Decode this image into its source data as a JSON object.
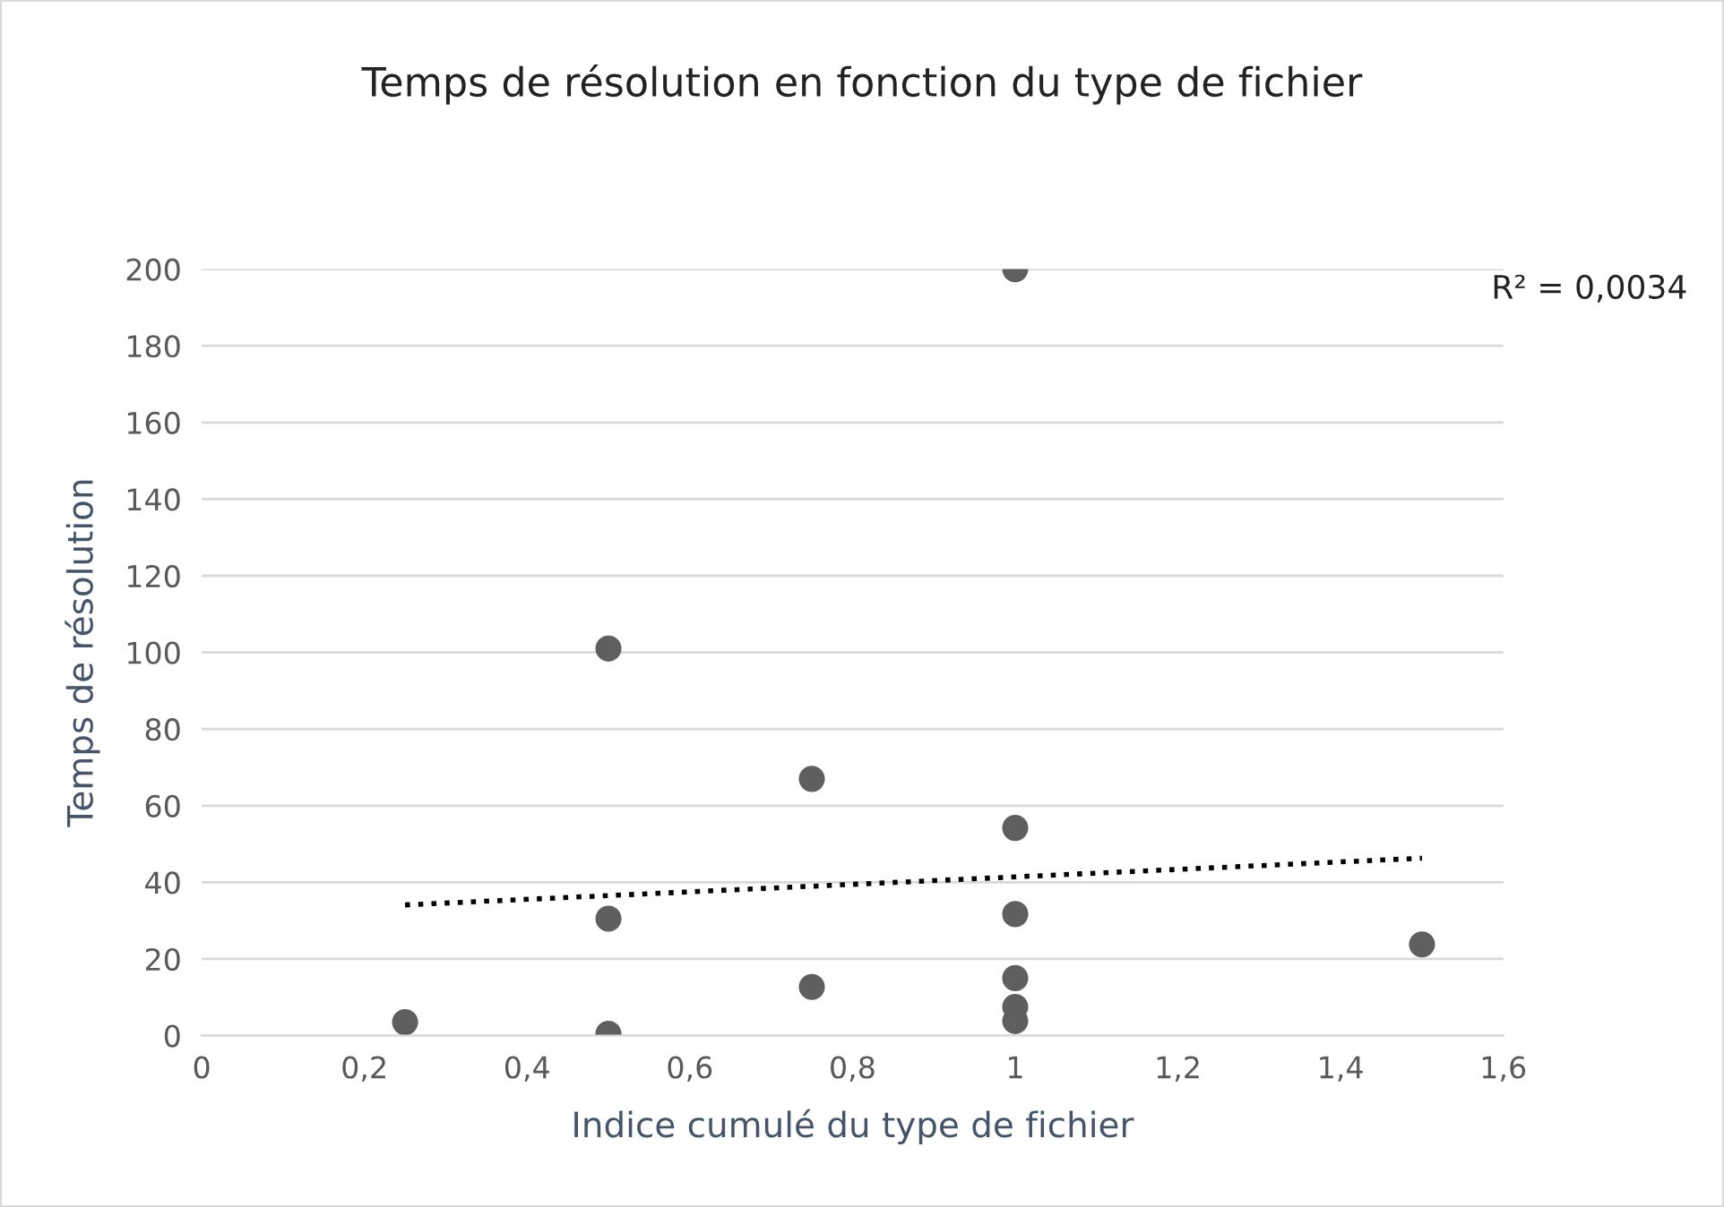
{
  "chart_data": {
    "type": "scatter",
    "title": "Temps de résolution en fonction du type de fichier",
    "xlabel": "Indice cumulé du type de fichier",
    "ylabel": "Temps de résolution",
    "annotations": [
      "R² = 0,0034"
    ],
    "series": [
      {
        "color": "#5f5f5f",
        "marker": "circle",
        "x": [
          0.25,
          0.5,
          0.5,
          0.5,
          0.75,
          0.75,
          1,
          1,
          1,
          1,
          1,
          1,
          1.5
        ],
        "values": [
          3.5,
          101,
          30.5,
          0.5,
          67,
          12.7,
          200,
          54.2,
          31.7,
          15,
          7.5,
          3.8,
          23.8
        ]
      },
      {
        "type": "line",
        "color": "#000000",
        "line_style": "dotted",
        "marker": "none",
        "x": [
          0.25,
          1.5
        ],
        "values": [
          34.1,
          46.3
        ]
      }
    ],
    "xlim": [
      0,
      1.6
    ],
    "ylim": [
      0,
      200
    ],
    "xticks": [
      0,
      {
        "value": 0.2,
        "label": "0,2"
      },
      {
        "value": 0.4,
        "label": "0,4"
      },
      {
        "value": 0.6,
        "label": "0,6"
      },
      {
        "value": 0.8,
        "label": "0,8"
      },
      1,
      {
        "value": 1.2,
        "label": "1,2"
      },
      {
        "value": 1.4,
        "label": "1,4"
      },
      {
        "value": 1.6,
        "label": "1,6"
      }
    ],
    "yticks": [
      0,
      20,
      40,
      60,
      80,
      100,
      120,
      140,
      160,
      180,
      200
    ],
    "grid": "y",
    "legend": false
  }
}
